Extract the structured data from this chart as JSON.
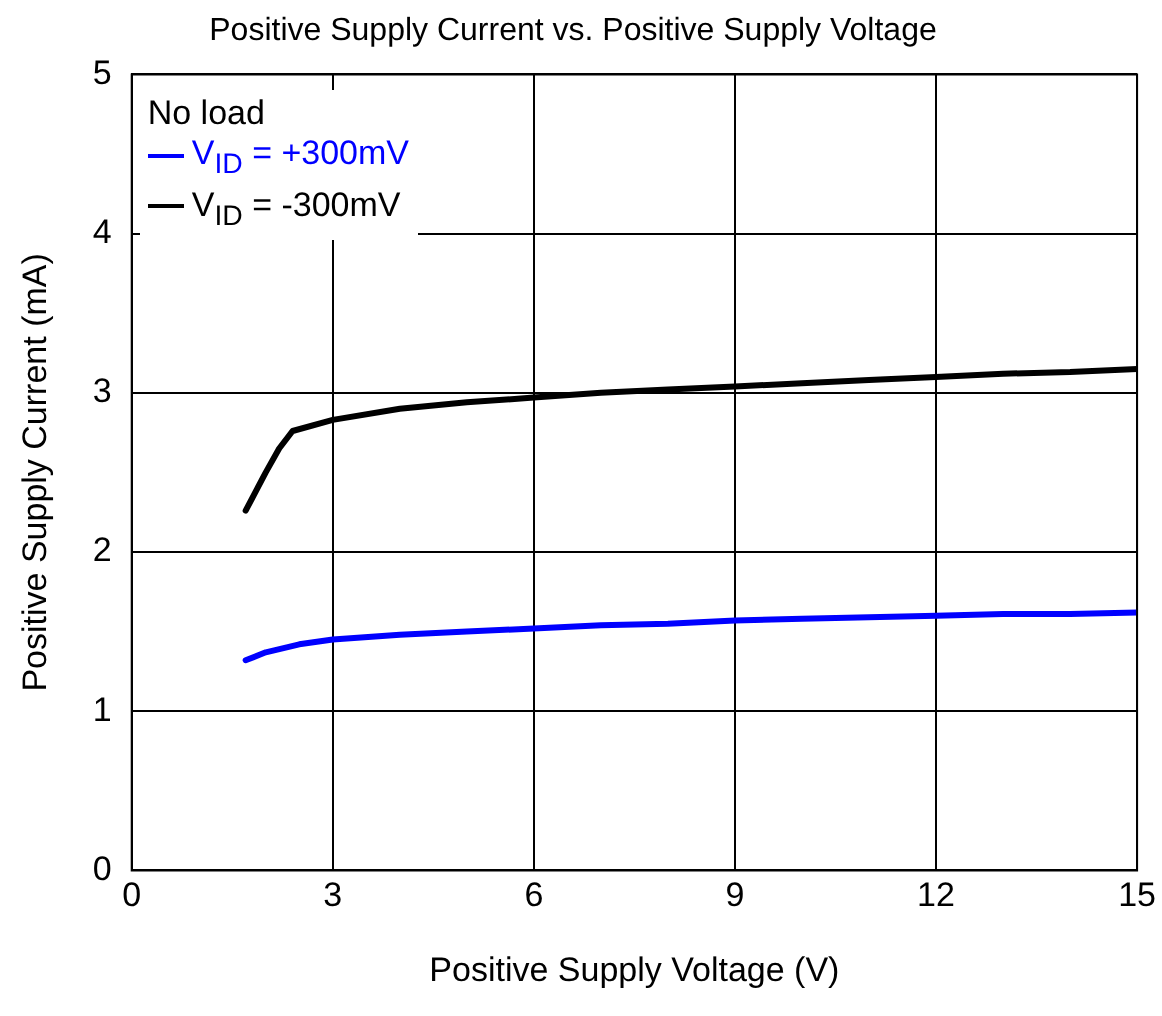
{
  "chart_data": {
    "type": "line",
    "title": "Positive Supply Current vs. Positive Supply Voltage",
    "xlabel": "Positive Supply Voltage (V)",
    "ylabel": "Positive Supply Current (mA)",
    "legend_title": "No load",
    "series": [
      {
        "name": "V$_{ID}$ = +300mV",
        "color": "#0000ff",
        "x": [
          1.7,
          2,
          2.5,
          3,
          4,
          5,
          6,
          7,
          8,
          9,
          10,
          11,
          12,
          13,
          14,
          15
        ],
        "values": [
          1.32,
          1.37,
          1.42,
          1.45,
          1.48,
          1.5,
          1.52,
          1.54,
          1.55,
          1.57,
          1.58,
          1.59,
          1.6,
          1.61,
          1.61,
          1.62
        ]
      },
      {
        "name": "V$_{ID}$ = -300mV",
        "color": "#000000",
        "x": [
          1.7,
          2,
          2.2,
          2.4,
          3,
          4,
          5,
          6,
          7,
          8,
          9,
          10,
          11,
          12,
          13,
          14,
          15
        ],
        "values": [
          2.26,
          2.5,
          2.65,
          2.76,
          2.83,
          2.9,
          2.94,
          2.97,
          3,
          3.02,
          3.04,
          3.06,
          3.08,
          3.1,
          3.12,
          3.13,
          3.15
        ]
      }
    ],
    "xlim": [
      0,
      15
    ],
    "xticks": [
      0,
      3,
      6,
      9,
      12,
      15
    ],
    "ylim": [
      0,
      5
    ],
    "yticks": [
      0,
      1,
      2,
      3,
      4,
      5
    ],
    "grid": true,
    "legend": "top left",
    "marker": "none",
    "line_style": "solid"
  }
}
